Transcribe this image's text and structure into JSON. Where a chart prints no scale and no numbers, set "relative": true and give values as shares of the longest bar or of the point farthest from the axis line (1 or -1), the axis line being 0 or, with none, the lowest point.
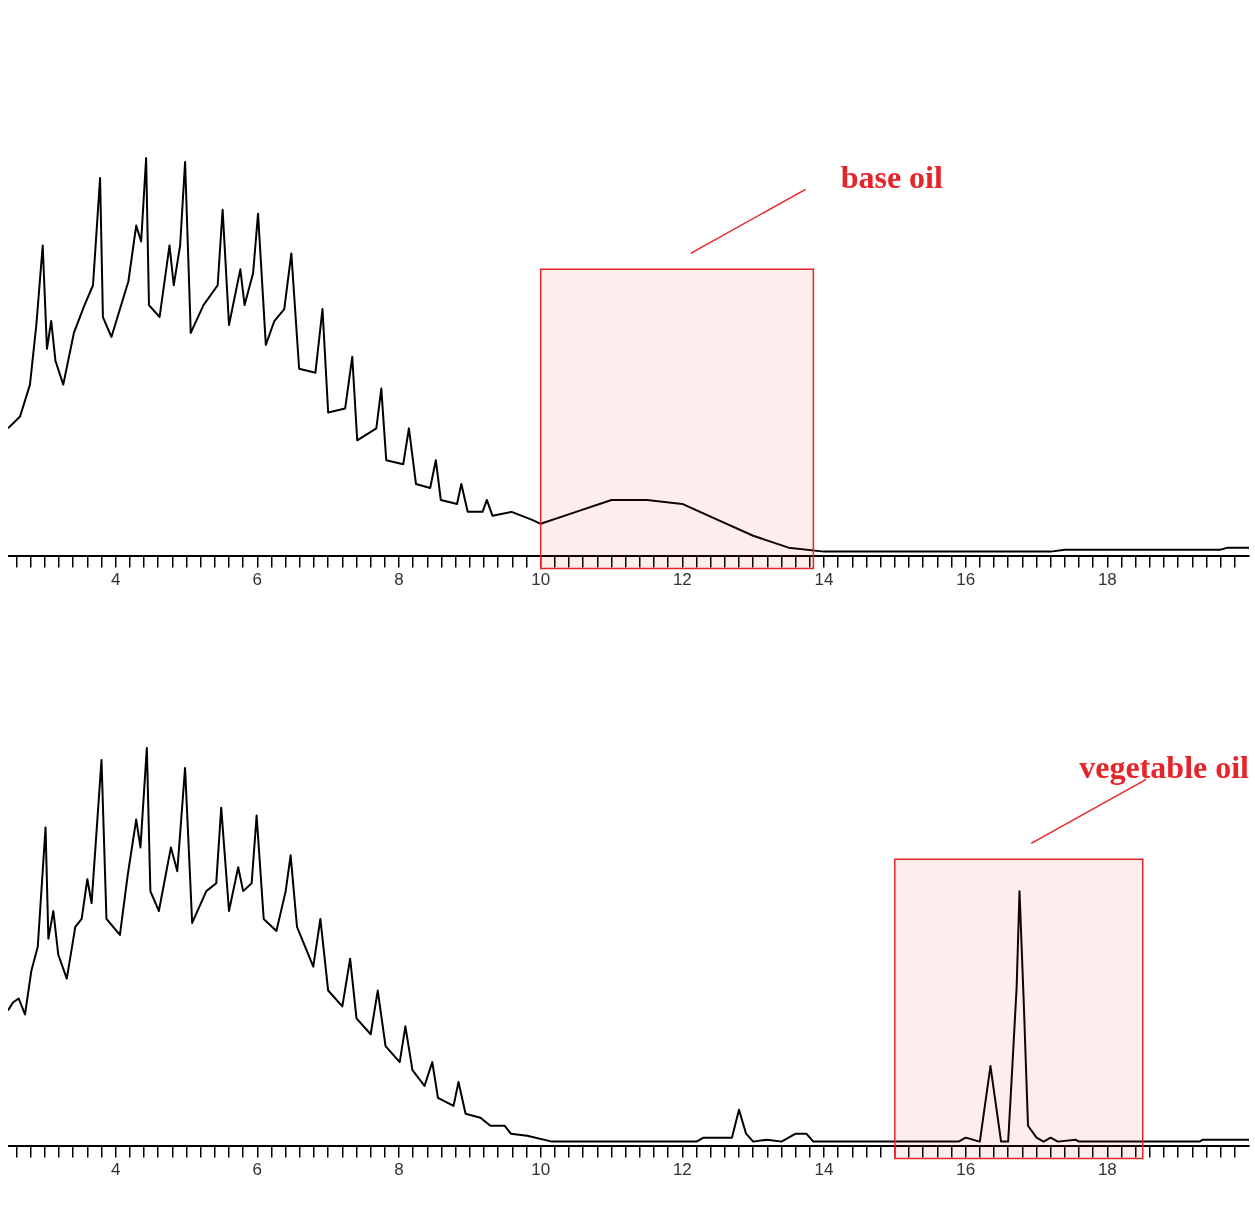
{
  "chart_data": [
    {
      "type": "line",
      "relative": true,
      "legend": false,
      "xlim": [
        2.48,
        20.0
      ],
      "xticks": [
        {
          "value": 2.6,
          "label": null
        },
        {
          "value": 2.8,
          "label": null
        },
        {
          "value": 3,
          "label": null
        },
        {
          "value": 3.2,
          "label": null
        },
        {
          "value": 3.4,
          "label": null
        },
        {
          "value": 3.6,
          "label": null
        },
        {
          "value": 3.8,
          "label": null
        },
        4,
        {
          "value": 4.2,
          "label": null
        },
        {
          "value": 4.4,
          "label": null
        },
        {
          "value": 4.6,
          "label": null
        },
        {
          "value": 4.8,
          "label": null
        },
        {
          "value": 5,
          "label": null
        },
        {
          "value": 5.2,
          "label": null
        },
        {
          "value": 5.4,
          "label": null
        },
        {
          "value": 5.6,
          "label": null
        },
        {
          "value": 5.8,
          "label": null
        },
        6,
        {
          "value": 6.2,
          "label": null
        },
        {
          "value": 6.4,
          "label": null
        },
        {
          "value": 6.6,
          "label": null
        },
        {
          "value": 6.8,
          "label": null
        },
        {
          "value": 7,
          "label": null
        },
        {
          "value": 7.2,
          "label": null
        },
        {
          "value": 7.4,
          "label": null
        },
        {
          "value": 7.6,
          "label": null
        },
        {
          "value": 7.8,
          "label": null
        },
        8,
        {
          "value": 8.2,
          "label": null
        },
        {
          "value": 8.4,
          "label": null
        },
        {
          "value": 8.6,
          "label": null
        },
        {
          "value": 8.8,
          "label": null
        },
        {
          "value": 9,
          "label": null
        },
        {
          "value": 9.2,
          "label": null
        },
        {
          "value": 9.4,
          "label": null
        },
        {
          "value": 9.6,
          "label": null
        },
        {
          "value": 9.8,
          "label": null
        },
        10,
        {
          "value": 10.2,
          "label": null
        },
        {
          "value": 10.4,
          "label": null
        },
        {
          "value": 10.6,
          "label": null
        },
        {
          "value": 10.8,
          "label": null
        },
        {
          "value": 11,
          "label": null
        },
        {
          "value": 11.2,
          "label": null
        },
        {
          "value": 11.4,
          "label": null
        },
        {
          "value": 11.6,
          "label": null
        },
        {
          "value": 11.8,
          "label": null
        },
        12,
        {
          "value": 12.2,
          "label": null
        },
        {
          "value": 12.4,
          "label": null
        },
        {
          "value": 12.6,
          "label": null
        },
        {
          "value": 12.8,
          "label": null
        },
        {
          "value": 13,
          "label": null
        },
        {
          "value": 13.2,
          "label": null
        },
        {
          "value": 13.4,
          "label": null
        },
        {
          "value": 13.6,
          "label": null
        },
        {
          "value": 13.8,
          "label": null
        },
        14,
        {
          "value": 14.2,
          "label": null
        },
        {
          "value": 14.4,
          "label": null
        },
        {
          "value": 14.6,
          "label": null
        },
        {
          "value": 14.8,
          "label": null
        },
        {
          "value": 15,
          "label": null
        },
        {
          "value": 15.2,
          "label": null
        },
        {
          "value": 15.4,
          "label": null
        },
        {
          "value": 15.6,
          "label": null
        },
        {
          "value": 15.8,
          "label": null
        },
        16,
        {
          "value": 16.2,
          "label": null
        },
        {
          "value": 16.4,
          "label": null
        },
        {
          "value": 16.6,
          "label": null
        },
        {
          "value": 16.8,
          "label": null
        },
        {
          "value": 17,
          "label": null
        },
        {
          "value": 17.2,
          "label": null
        },
        {
          "value": 17.4,
          "label": null
        },
        {
          "value": 17.6,
          "label": null
        },
        {
          "value": 17.8,
          "label": null
        },
        18,
        {
          "value": 18.2,
          "label": null
        },
        {
          "value": 18.4,
          "label": null
        },
        {
          "value": 18.6,
          "label": null
        },
        {
          "value": 18.8,
          "label": null
        },
        {
          "value": 19,
          "label": null
        },
        {
          "value": 19.2,
          "label": null
        },
        {
          "value": 19.4,
          "label": null
        },
        {
          "value": 19.6,
          "label": null
        },
        {
          "value": 19.8,
          "label": null
        }
      ],
      "series": [
        {
          "color": "#000000",
          "x": [
            2.48,
            2.65,
            2.79,
            2.88,
            2.97,
            3.03,
            3.09,
            3.15,
            3.26,
            3.41,
            3.56,
            3.68,
            3.78,
            3.82,
            3.94,
            4.18,
            4.29,
            4.36,
            4.43,
            4.47,
            4.62,
            4.76,
            4.82,
            4.91,
            4.98,
            5.06,
            5.24,
            5.44,
            5.51,
            5.6,
            5.76,
            5.82,
            5.94,
            6.01,
            6.12,
            6.24,
            6.38,
            6.48,
            6.59,
            6.82,
            6.92,
            7.0,
            7.24,
            7.34,
            7.41,
            7.68,
            7.75,
            7.82,
            8.06,
            8.14,
            8.24,
            8.44,
            8.52,
            8.59,
            8.82,
            8.88,
            8.97,
            9.18,
            9.24,
            9.32,
            9.59,
            9.88,
            10.0,
            10.5,
            11.0,
            11.5,
            12.0,
            12.5,
            13.0,
            13.5,
            14.0,
            17.2,
            17.4,
            19.6,
            19.7,
            20.0
          ],
          "values": [
            0.32,
            0.35,
            0.43,
            0.58,
            0.78,
            0.52,
            0.59,
            0.49,
            0.43,
            0.56,
            0.63,
            0.68,
            0.95,
            0.6,
            0.55,
            0.69,
            0.83,
            0.79,
            1.0,
            0.63,
            0.6,
            0.78,
            0.68,
            0.78,
            0.99,
            0.56,
            0.63,
            0.68,
            0.87,
            0.58,
            0.72,
            0.63,
            0.71,
            0.86,
            0.53,
            0.59,
            0.62,
            0.76,
            0.47,
            0.46,
            0.62,
            0.36,
            0.37,
            0.5,
            0.29,
            0.32,
            0.42,
            0.24,
            0.23,
            0.32,
            0.18,
            0.17,
            0.24,
            0.14,
            0.13,
            0.18,
            0.11,
            0.11,
            0.14,
            0.1,
            0.11,
            0.09,
            0.08,
            0.11,
            0.14,
            0.14,
            0.13,
            0.09,
            0.05,
            0.02,
            0.01,
            0.01,
            0.015,
            0.015,
            0.02,
            0.02
          ]
        }
      ],
      "bands": [
        {
          "axis": "x",
          "from": 10.0,
          "to": 13.85,
          "label": "base oil",
          "color": "#e8242b"
        }
      ]
    },
    {
      "type": "line",
      "relative": true,
      "legend": false,
      "xlim": [
        2.48,
        20.0
      ],
      "xticks": [
        {
          "value": 2.6,
          "label": null
        },
        {
          "value": 2.8,
          "label": null
        },
        {
          "value": 3,
          "label": null
        },
        {
          "value": 3.2,
          "label": null
        },
        {
          "value": 3.4,
          "label": null
        },
        {
          "value": 3.6,
          "label": null
        },
        {
          "value": 3.8,
          "label": null
        },
        4,
        {
          "value": 4.2,
          "label": null
        },
        {
          "value": 4.4,
          "label": null
        },
        {
          "value": 4.6,
          "label": null
        },
        {
          "value": 4.8,
          "label": null
        },
        {
          "value": 5,
          "label": null
        },
        {
          "value": 5.2,
          "label": null
        },
        {
          "value": 5.4,
          "label": null
        },
        {
          "value": 5.6,
          "label": null
        },
        {
          "value": 5.8,
          "label": null
        },
        6,
        {
          "value": 6.2,
          "label": null
        },
        {
          "value": 6.4,
          "label": null
        },
        {
          "value": 6.6,
          "label": null
        },
        {
          "value": 6.8,
          "label": null
        },
        {
          "value": 7,
          "label": null
        },
        {
          "value": 7.2,
          "label": null
        },
        {
          "value": 7.4,
          "label": null
        },
        {
          "value": 7.6,
          "label": null
        },
        {
          "value": 7.8,
          "label": null
        },
        8,
        {
          "value": 8.2,
          "label": null
        },
        {
          "value": 8.4,
          "label": null
        },
        {
          "value": 8.6,
          "label": null
        },
        {
          "value": 8.8,
          "label": null
        },
        {
          "value": 9,
          "label": null
        },
        {
          "value": 9.2,
          "label": null
        },
        {
          "value": 9.4,
          "label": null
        },
        {
          "value": 9.6,
          "label": null
        },
        {
          "value": 9.8,
          "label": null
        },
        10,
        {
          "value": 10.2,
          "label": null
        },
        {
          "value": 10.4,
          "label": null
        },
        {
          "value": 10.6,
          "label": null
        },
        {
          "value": 10.8,
          "label": null
        },
        {
          "value": 11,
          "label": null
        },
        {
          "value": 11.2,
          "label": null
        },
        {
          "value": 11.4,
          "label": null
        },
        {
          "value": 11.6,
          "label": null
        },
        {
          "value": 11.8,
          "label": null
        },
        12,
        {
          "value": 12.2,
          "label": null
        },
        {
          "value": 12.4,
          "label": null
        },
        {
          "value": 12.6,
          "label": null
        },
        {
          "value": 12.8,
          "label": null
        },
        {
          "value": 13,
          "label": null
        },
        {
          "value": 13.2,
          "label": null
        },
        {
          "value": 13.4,
          "label": null
        },
        {
          "value": 13.6,
          "label": null
        },
        {
          "value": 13.8,
          "label": null
        },
        14,
        {
          "value": 14.2,
          "label": null
        },
        {
          "value": 14.4,
          "label": null
        },
        {
          "value": 14.6,
          "label": null
        },
        {
          "value": 14.8,
          "label": null
        },
        {
          "value": 15,
          "label": null
        },
        {
          "value": 15.2,
          "label": null
        },
        {
          "value": 15.4,
          "label": null
        },
        {
          "value": 15.6,
          "label": null
        },
        {
          "value": 15.8,
          "label": null
        },
        16,
        {
          "value": 16.2,
          "label": null
        },
        {
          "value": 16.4,
          "label": null
        },
        {
          "value": 16.6,
          "label": null
        },
        {
          "value": 16.8,
          "label": null
        },
        {
          "value": 17,
          "label": null
        },
        {
          "value": 17.2,
          "label": null
        },
        {
          "value": 17.4,
          "label": null
        },
        {
          "value": 17.6,
          "label": null
        },
        {
          "value": 17.8,
          "label": null
        },
        18,
        {
          "value": 18.2,
          "label": null
        },
        {
          "value": 18.4,
          "label": null
        },
        {
          "value": 18.6,
          "label": null
        },
        {
          "value": 18.8,
          "label": null
        },
        {
          "value": 19,
          "label": null
        },
        {
          "value": 19.2,
          "label": null
        },
        {
          "value": 19.4,
          "label": null
        },
        {
          "value": 19.6,
          "label": null
        },
        {
          "value": 19.8,
          "label": null
        }
      ],
      "series": [
        {
          "color": "#000000",
          "x": [
            2.48,
            2.55,
            2.63,
            2.72,
            2.81,
            2.9,
            3.01,
            3.05,
            3.12,
            3.19,
            3.31,
            3.43,
            3.52,
            3.6,
            3.66,
            3.8,
            3.87,
            4.06,
            4.17,
            4.29,
            4.35,
            4.44,
            4.49,
            4.61,
            4.78,
            4.87,
            4.98,
            5.08,
            5.28,
            5.42,
            5.49,
            5.6,
            5.73,
            5.8,
            5.92,
            5.99,
            6.09,
            6.27,
            6.4,
            6.47,
            6.56,
            6.79,
            6.89,
            7.0,
            7.2,
            7.31,
            7.4,
            7.6,
            7.7,
            7.81,
            8.01,
            8.09,
            8.19,
            8.36,
            8.47,
            8.55,
            8.77,
            8.84,
            8.94,
            9.15,
            9.29,
            9.49,
            9.58,
            9.81,
            10.16,
            12.2,
            12.3,
            12.7,
            12.8,
            12.9,
            13.0,
            13.2,
            13.4,
            13.6,
            13.75,
            13.85,
            15.9,
            16.0,
            16.2,
            16.35,
            16.5,
            16.6,
            16.65,
            16.72,
            16.76,
            16.82,
            16.88,
            17.0,
            17.1,
            17.2,
            17.3,
            17.55,
            17.6,
            19.3,
            19.35,
            20.0
          ],
          "values": [
            0.34,
            0.36,
            0.37,
            0.33,
            0.44,
            0.5,
            0.8,
            0.52,
            0.59,
            0.48,
            0.42,
            0.55,
            0.57,
            0.67,
            0.61,
            0.97,
            0.57,
            0.53,
            0.68,
            0.82,
            0.75,
            1.0,
            0.64,
            0.59,
            0.75,
            0.69,
            0.95,
            0.56,
            0.64,
            0.66,
            0.85,
            0.59,
            0.7,
            0.64,
            0.66,
            0.83,
            0.57,
            0.54,
            0.64,
            0.73,
            0.55,
            0.45,
            0.57,
            0.39,
            0.35,
            0.47,
            0.32,
            0.28,
            0.39,
            0.25,
            0.21,
            0.3,
            0.19,
            0.15,
            0.21,
            0.12,
            0.1,
            0.16,
            0.08,
            0.07,
            0.05,
            0.05,
            0.03,
            0.025,
            0.01,
            0.01,
            0.02,
            0.02,
            0.09,
            0.03,
            0.01,
            0.015,
            0.01,
            0.03,
            0.03,
            0.01,
            0.01,
            0.02,
            0.01,
            0.2,
            0.01,
            0.01,
            0.17,
            0.4,
            0.64,
            0.36,
            0.05,
            0.02,
            0.01,
            0.02,
            0.01,
            0.015,
            0.01,
            0.01,
            0.015,
            0.015
          ]
        }
      ],
      "bands": [
        {
          "axis": "x",
          "from": 15.0,
          "to": 18.5,
          "label": "vegetable oil",
          "color": "#e8242b"
        }
      ]
    }
  ]
}
